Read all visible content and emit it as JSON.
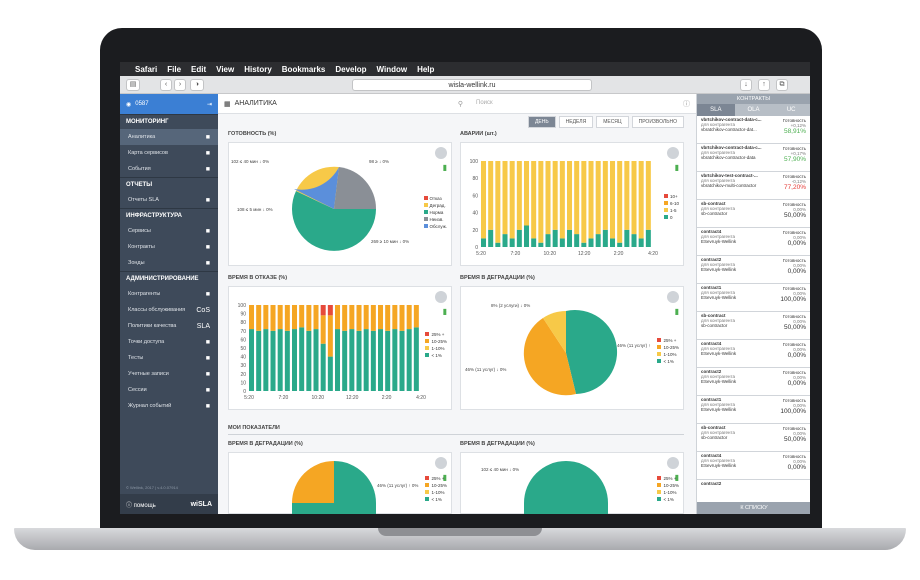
{
  "menubar": {
    "items": [
      "Safari",
      "File",
      "Edit",
      "View",
      "History",
      "Bookmarks",
      "Develop",
      "Window",
      "Help"
    ]
  },
  "browser": {
    "url": "wisla-wellink.ru"
  },
  "sidebar": {
    "user": "0587",
    "sections": [
      {
        "title": "МОНИТОРИНГ",
        "items": [
          {
            "label": "Аналитика",
            "icon": "chart-icon",
            "active": true
          },
          {
            "label": "Карта сервисов",
            "icon": "pin-icon"
          },
          {
            "label": "События",
            "icon": "warning-icon"
          }
        ]
      },
      {
        "title": "ОТЧЕТЫ",
        "items": [
          {
            "label": "Отчеты SLA",
            "icon": "pie-icon"
          }
        ]
      },
      {
        "title": "ИНФРАСТРУКТУРА",
        "items": [
          {
            "label": "Сервисы",
            "icon": "list-icon"
          },
          {
            "label": "Контракты",
            "icon": "list-icon"
          },
          {
            "label": "Зонды",
            "icon": "list-icon"
          }
        ]
      },
      {
        "title": "АДМИНИСТРИРОВАНИЕ",
        "items": [
          {
            "label": "Контрагенты",
            "icon": "users-icon"
          },
          {
            "label": "Классы обслуживания",
            "icon": "cos-icon",
            "text": "CoS"
          },
          {
            "label": "Политики качества",
            "icon": "sla-icon",
            "text": "SLA"
          },
          {
            "label": "Точки доступа",
            "icon": "target-icon"
          },
          {
            "label": "Тесты",
            "icon": "gear-icon"
          },
          {
            "label": "Учетные записи",
            "icon": "user-icon"
          },
          {
            "label": "Сессии",
            "icon": "monitor-icon"
          },
          {
            "label": "Журнал событий",
            "icon": "db-icon"
          }
        ]
      }
    ],
    "copyright": "© Wellink, 2017 | v.4.0.07914",
    "help": "помощь",
    "brand": "wiSLA"
  },
  "main": {
    "title": "АНАЛИТИКА",
    "search_placeholder": "Поиск",
    "periods": [
      "ДЕНЬ",
      "НЕДЕЛЯ",
      "МЕСЯЦ",
      "ПРОИЗВОЛЬНО"
    ],
    "section_label": "МОИ ПОКАЗАТЕЛИ",
    "panels": {
      "readiness": {
        "title": "ГОТОВНОСТЬ (%)",
        "labels": [
          "102 ≤ 40 мин ↓ 0%",
          "98 ≥ ↓ 0%",
          "108 ≤ 5 мин ↓ 0%",
          "269 ≥ 10 мин ↓ 0%"
        ],
        "legend": [
          "Отказ",
          "Деград.",
          "Норма",
          "Неизв.",
          "Обслуж."
        ]
      },
      "alarms": {
        "title": "АВАРИИ (шт.)",
        "legend": [
          "10+",
          "6-10",
          "1-5",
          "0"
        ],
        "yticks": [
          "100",
          "80",
          "60",
          "40",
          "20",
          "0"
        ],
        "xticks": [
          "5:20",
          "7:20",
          "10:20",
          "12:20",
          "2:20",
          "4:20"
        ]
      },
      "downtime": {
        "title": "ВРЕМЯ В ОТКАЗЕ (%)",
        "legend": [
          "25% +",
          "10-25%",
          "1-10%",
          "< 1%"
        ],
        "yticks": [
          "100",
          "90",
          "80",
          "70",
          "60",
          "50",
          "40",
          "30",
          "20",
          "10",
          "0"
        ],
        "xticks": [
          "5:20",
          "7:20",
          "10:20",
          "12:20",
          "2:20",
          "4:20"
        ]
      },
      "degradation": {
        "title": "ВРЕМЯ В ДЕГРАДАЦИИ (%)",
        "labels": [
          "8% (2 услуги) ↓ 0%",
          "46% (11 услуг) ↑",
          "46% (11 услуг) ↓ 0%"
        ],
        "legend": [
          "25% +",
          "10-25%",
          "1-10%",
          "< 1%"
        ]
      },
      "my_degradation": {
        "title": "ВРЕМЯ В ДЕГРАДАЦИИ (%)",
        "labels": [
          "46% (11 услуг) ↑ 0%"
        ],
        "legend": [
          "25% +",
          "10-25%",
          "1-10%",
          "< 1%"
        ]
      },
      "my_degradation2": {
        "title": "ВРЕМЯ В ДЕГРАДАЦИИ (%)",
        "labels": [
          "102 ≤ 40 мин ↓ 0%"
        ],
        "legend": [
          "25% +",
          "10-25%",
          "1-10%",
          "< 1%"
        ]
      }
    }
  },
  "right": {
    "header": "КОНТРАКТЫ",
    "tabs": [
      "SLA",
      "OLA",
      "UC"
    ],
    "rows": [
      {
        "name": "vbrtchikov-contract-data-c...",
        "sub": "для контрагента",
        "org": "vbratchikov-contractor-dat...",
        "metric": "Готовность",
        "delta": "+0,12%",
        "value": "58,91%",
        "trend": "up"
      },
      {
        "name": "vbrtchikov-contract-data-c...",
        "sub": "для контрагента",
        "org": "vbratchikov-contractor-data",
        "metric": "Готовность",
        "delta": "+0,17%",
        "value": "57,90%",
        "trend": "up"
      },
      {
        "name": "vbrtchikov-test-contract-...",
        "sub": "для контрагента",
        "org": "vbratchikov-multi-contractor",
        "metric": "Готовность",
        "delta": "-0,12%",
        "value": "77,20%",
        "trend": "dn"
      },
      {
        "name": "sb-contract",
        "sub": "для контрагента",
        "org": "sb-contractor",
        "metric": "Готовность",
        "delta": "0,00%",
        "value": "50,00%",
        "trend": ""
      },
      {
        "name": "contract4",
        "sub": "для контрагента",
        "org": "ESevruyk-Wellink",
        "metric": "Готовность",
        "delta": "0,00%",
        "value": "0,00%",
        "trend": ""
      },
      {
        "name": "contract2",
        "sub": "для контрагента",
        "org": "ESevruyk-Wellink",
        "metric": "Готовность",
        "delta": "0,00%",
        "value": "0,00%",
        "trend": ""
      },
      {
        "name": "contract1",
        "sub": "для контрагента",
        "org": "ESevruyk-Wellink",
        "metric": "Готовность",
        "delta": "0,00%",
        "value": "100,00%",
        "trend": ""
      },
      {
        "name": "sb-contract",
        "sub": "для контрагента",
        "org": "sb-contractor",
        "metric": "Готовность",
        "delta": "0,00%",
        "value": "50,00%",
        "trend": ""
      },
      {
        "name": "contract4",
        "sub": "для контрагента",
        "org": "ESevruyk-Wellink",
        "metric": "Готовность",
        "delta": "0,00%",
        "value": "0,00%",
        "trend": ""
      },
      {
        "name": "contract2",
        "sub": "для контрагента",
        "org": "ESevruyk-Wellink",
        "metric": "Готовность",
        "delta": "0,00%",
        "value": "0,00%",
        "trend": ""
      },
      {
        "name": "contract1",
        "sub": "для контрагента",
        "org": "ESevruyk-Wellink",
        "metric": "Готовность",
        "delta": "0,00%",
        "value": "100,00%",
        "trend": ""
      },
      {
        "name": "sb-contract",
        "sub": "для контрагента",
        "org": "sb-contractor",
        "metric": "Готовность",
        "delta": "0,00%",
        "value": "50,00%",
        "trend": ""
      },
      {
        "name": "contract4",
        "sub": "для контрагента",
        "org": "ESevruyk-Wellink",
        "metric": "Готовность",
        "delta": "0,00%",
        "value": "0,00%",
        "trend": ""
      },
      {
        "name": "contract2",
        "sub": "",
        "org": "",
        "metric": "",
        "delta": "",
        "value": "",
        "trend": ""
      }
    ],
    "footer": "К СПИСКУ"
  },
  "colors": {
    "green": "#2aa98a",
    "orange": "#f5a623",
    "yellow": "#f7c948",
    "red": "#e64a3b",
    "blue": "#5b8fdb",
    "gray": "#8a8f96"
  }
}
